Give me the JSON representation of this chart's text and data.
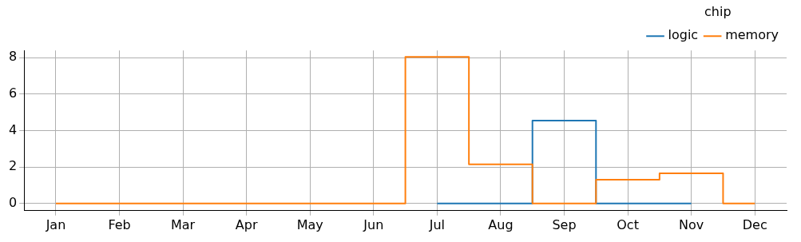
{
  "chart_data": {
    "type": "step",
    "legend_title": "chip",
    "categories": [
      "Jan",
      "Feb",
      "Mar",
      "Apr",
      "May",
      "Jun",
      "Jul",
      "Aug",
      "Sep",
      "Oct",
      "Nov",
      "Dec"
    ],
    "series": [
      {
        "name": "logic",
        "color": "#1f77b4",
        "values": [
          null,
          null,
          null,
          null,
          null,
          null,
          0,
          0,
          4.55,
          0,
          0,
          null
        ]
      },
      {
        "name": "memory",
        "color": "#ff7f0e",
        "values": [
          0,
          0,
          0,
          0,
          0,
          0,
          8.05,
          2.15,
          0,
          1.3,
          1.65,
          0
        ]
      }
    ],
    "ylim": [
      -0.4,
      8.4
    ],
    "yticks": [
      0,
      2,
      4,
      6,
      8
    ],
    "grid": true,
    "legend": "top right",
    "marker": "none",
    "line_style": "solid"
  }
}
